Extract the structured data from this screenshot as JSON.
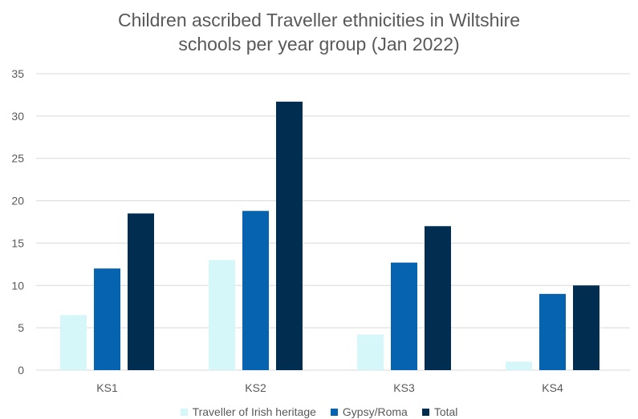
{
  "chart_data": {
    "type": "bar",
    "title_lines": [
      "Children ascribed Traveller ethnicities in Wiltshire",
      "schools per year group (Jan 2022)"
    ],
    "categories": [
      "KS1",
      "KS2",
      "KS3",
      "KS4"
    ],
    "series": [
      {
        "name": "Traveller of Irish heritage",
        "color": "#d6f7fa",
        "values": [
          6.5,
          13,
          4.2,
          1
        ]
      },
      {
        "name": "Gypsy/Roma",
        "color": "#0563b0",
        "values": [
          12,
          18.8,
          12.7,
          9
        ]
      },
      {
        "name": "Total",
        "color": "#012d50",
        "values": [
          18.5,
          31.7,
          17,
          10
        ]
      }
    ],
    "ylim": [
      0,
      35
    ],
    "yticks": [
      0,
      5,
      10,
      15,
      20,
      25,
      30,
      35
    ],
    "grid": true,
    "gridline_color": "#d9d9d9",
    "legend_position": "bottom"
  }
}
